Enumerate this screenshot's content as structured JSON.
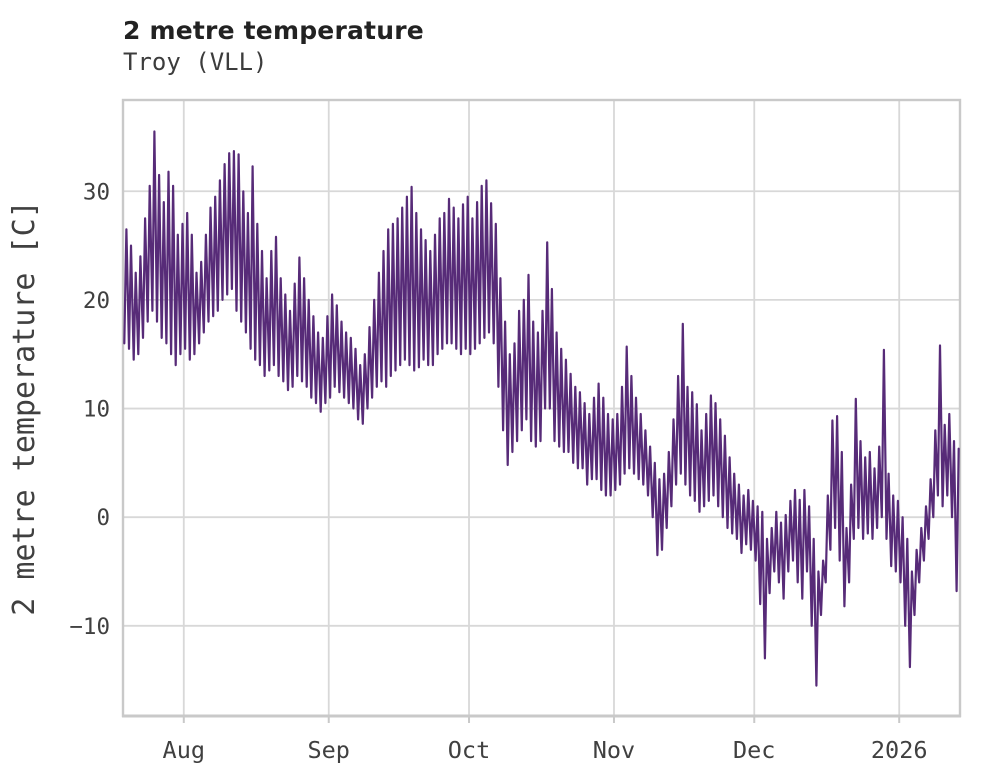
{
  "header": {
    "title": "2 metre temperature",
    "subtitle": "Troy (VLL)"
  },
  "chart_data": {
    "type": "line",
    "title": "2 metre temperature",
    "subtitle": "Troy (VLL)",
    "xlabel": "",
    "ylabel": "2 metre temperature [C]",
    "unit": "C",
    "line_color": "#572b78",
    "grid_color": "#d8d8d8",
    "spine_color": "#c9c9c9",
    "grid": true,
    "legend": "none",
    "ylim": [
      -18.3,
      38.4
    ],
    "y_ticks": [
      {
        "value": 30,
        "label": "30"
      },
      {
        "value": 20,
        "label": "20"
      },
      {
        "value": 10,
        "label": "10"
      },
      {
        "value": 0,
        "label": "0"
      },
      {
        "value": -10,
        "label": "−10"
      }
    ],
    "x_ticks": [
      {
        "label": "Aug",
        "day_index": 13
      },
      {
        "label": "Sep",
        "day_index": 44
      },
      {
        "label": "Oct",
        "day_index": 74
      },
      {
        "label": "Nov",
        "day_index": 105
      },
      {
        "label": "Dec",
        "day_index": 135
      },
      {
        "label": "2026",
        "day_index": 166
      }
    ],
    "series": {
      "name": "2 metre temperature",
      "start_date": "2025-07-19",
      "end_date": "2026-01-13",
      "resolution": "daily min/max envelope of hourly data",
      "daily_min_max": [
        [
          16,
          26.5
        ],
        [
          15.5,
          25
        ],
        [
          14.5,
          22.5
        ],
        [
          15,
          24
        ],
        [
          16.5,
          27.5
        ],
        [
          18,
          30.5
        ],
        [
          19,
          35.5
        ],
        [
          18,
          31.5
        ],
        [
          16.5,
          29
        ],
        [
          16,
          31.8
        ],
        [
          15,
          30.5
        ],
        [
          14,
          26
        ],
        [
          15,
          27
        ],
        [
          15.5,
          28
        ],
        [
          14.5,
          26
        ],
        [
          15,
          22.5
        ],
        [
          16,
          23.5
        ],
        [
          17,
          26
        ],
        [
          18,
          28.5
        ],
        [
          18.5,
          29.5
        ],
        [
          19,
          31
        ],
        [
          20,
          32.5
        ],
        [
          20.5,
          33.5
        ],
        [
          21,
          33.7
        ],
        [
          19,
          33.4
        ],
        [
          18,
          30
        ],
        [
          17,
          28
        ],
        [
          15.5,
          32.3
        ],
        [
          14.5,
          27
        ],
        [
          14,
          24.5
        ],
        [
          13,
          22
        ],
        [
          13.5,
          24.5
        ],
        [
          14,
          25.8
        ],
        [
          13,
          22
        ],
        [
          12.5,
          20.5
        ],
        [
          11.7,
          19
        ],
        [
          12,
          21.5
        ],
        [
          13,
          23.9
        ],
        [
          12.5,
          22
        ],
        [
          12,
          20
        ],
        [
          11,
          18.5
        ],
        [
          10.5,
          17
        ],
        [
          9.7,
          16.5
        ],
        [
          10.5,
          18.5
        ],
        [
          11,
          20.5
        ],
        [
          12,
          19.5
        ],
        [
          11.5,
          18
        ],
        [
          11,
          17
        ],
        [
          10.5,
          16.5
        ],
        [
          10,
          15.5
        ],
        [
          9,
          14
        ],
        [
          8.6,
          15
        ],
        [
          10,
          17.5
        ],
        [
          11,
          20
        ],
        [
          12,
          22.5
        ],
        [
          12.5,
          24.5
        ],
        [
          12,
          26.5
        ],
        [
          13,
          27
        ],
        [
          13.5,
          27.5
        ],
        [
          14,
          28.5
        ],
        [
          14.5,
          29.5
        ],
        [
          14,
          30.4
        ],
        [
          13.5,
          28
        ],
        [
          13.8,
          26.5
        ],
        [
          14.5,
          25.5
        ],
        [
          14,
          24.5
        ],
        [
          14,
          26
        ],
        [
          15,
          27.5
        ],
        [
          15.5,
          28
        ],
        [
          16,
          29.3
        ],
        [
          16,
          28.5
        ],
        [
          15.5,
          27.5
        ],
        [
          15,
          28.8
        ],
        [
          15.5,
          29.5
        ],
        [
          15,
          27.5
        ],
        [
          15.5,
          29
        ],
        [
          16,
          30.5
        ],
        [
          16.5,
          31
        ],
        [
          17,
          28.9
        ],
        [
          16,
          27
        ],
        [
          12,
          22
        ],
        [
          8,
          18
        ],
        [
          4.8,
          15
        ],
        [
          6,
          16
        ],
        [
          7,
          19
        ],
        [
          8,
          20
        ],
        [
          9,
          22.3
        ],
        [
          7,
          18
        ],
        [
          6.5,
          17
        ],
        [
          7,
          19
        ],
        [
          10,
          25.3
        ],
        [
          10,
          21
        ],
        [
          7,
          17
        ],
        [
          6.5,
          15.5
        ],
        [
          6,
          14.5
        ],
        [
          6,
          13.2
        ],
        [
          5,
          12
        ],
        [
          4.5,
          11.5
        ],
        [
          4.5,
          10.5
        ],
        [
          3,
          9.5
        ],
        [
          3.5,
          11
        ],
        [
          3.5,
          12.3
        ],
        [
          2.5,
          11
        ],
        [
          2,
          9.5
        ],
        [
          2,
          9
        ],
        [
          2.5,
          9.5
        ],
        [
          3,
          12
        ],
        [
          4,
          15.7
        ],
        [
          4.5,
          13
        ],
        [
          4,
          11
        ],
        [
          3.5,
          9.5
        ],
        [
          3,
          8
        ],
        [
          2,
          6.5
        ],
        [
          0,
          5
        ],
        [
          -3.5,
          3.5
        ],
        [
          -3,
          4
        ],
        [
          -1,
          6
        ],
        [
          1,
          9
        ],
        [
          3,
          13
        ],
        [
          4,
          17.8
        ],
        [
          3,
          12
        ],
        [
          2,
          11.5
        ],
        [
          1.5,
          10.4
        ],
        [
          0.5,
          8
        ],
        [
          1,
          9.5
        ],
        [
          1.5,
          11.2
        ],
        [
          2,
          10.5
        ],
        [
          1,
          9
        ],
        [
          0,
          7.5
        ],
        [
          -1,
          5.5
        ],
        [
          -1.5,
          4
        ],
        [
          -2,
          3
        ],
        [
          -3.3,
          2
        ],
        [
          -2.5,
          2.5
        ],
        [
          -3,
          1.5
        ],
        [
          -4,
          1
        ],
        [
          -8,
          0.5
        ],
        [
          -13,
          -2
        ],
        [
          -7,
          -1
        ],
        [
          -5,
          0.5
        ],
        [
          -6,
          -0.5
        ],
        [
          -7.5,
          0.2
        ],
        [
          -5,
          1.5
        ],
        [
          -4,
          2.5
        ],
        [
          -6,
          1.6
        ],
        [
          -7.5,
          2.5
        ],
        [
          -5,
          1
        ],
        [
          -10,
          -2
        ],
        [
          -15.5,
          -5
        ],
        [
          -9,
          -4
        ],
        [
          -6,
          2
        ],
        [
          -3,
          8.9
        ],
        [
          -1,
          9.3
        ],
        [
          -4,
          6
        ],
        [
          -8.2,
          -1
        ],
        [
          -6,
          3
        ],
        [
          -2,
          10.9
        ],
        [
          -1,
          7
        ],
        [
          -2,
          5.5
        ],
        [
          -1.5,
          6
        ],
        [
          -2,
          4.5
        ],
        [
          -1,
          6.5
        ],
        [
          0,
          15.4
        ],
        [
          -2,
          4
        ],
        [
          -4.5,
          2
        ],
        [
          -5,
          1.5
        ],
        [
          -6,
          0
        ],
        [
          -10,
          -2
        ],
        [
          -13.8,
          -5
        ],
        [
          -9,
          -3
        ],
        [
          -6,
          -1
        ],
        [
          -4,
          1
        ],
        [
          -2,
          3.5
        ],
        [
          0,
          8
        ],
        [
          2,
          15.8
        ],
        [
          1,
          8.5
        ],
        [
          2,
          9.5
        ],
        [
          0,
          7
        ],
        [
          -6.8,
          6.3
        ]
      ]
    }
  }
}
